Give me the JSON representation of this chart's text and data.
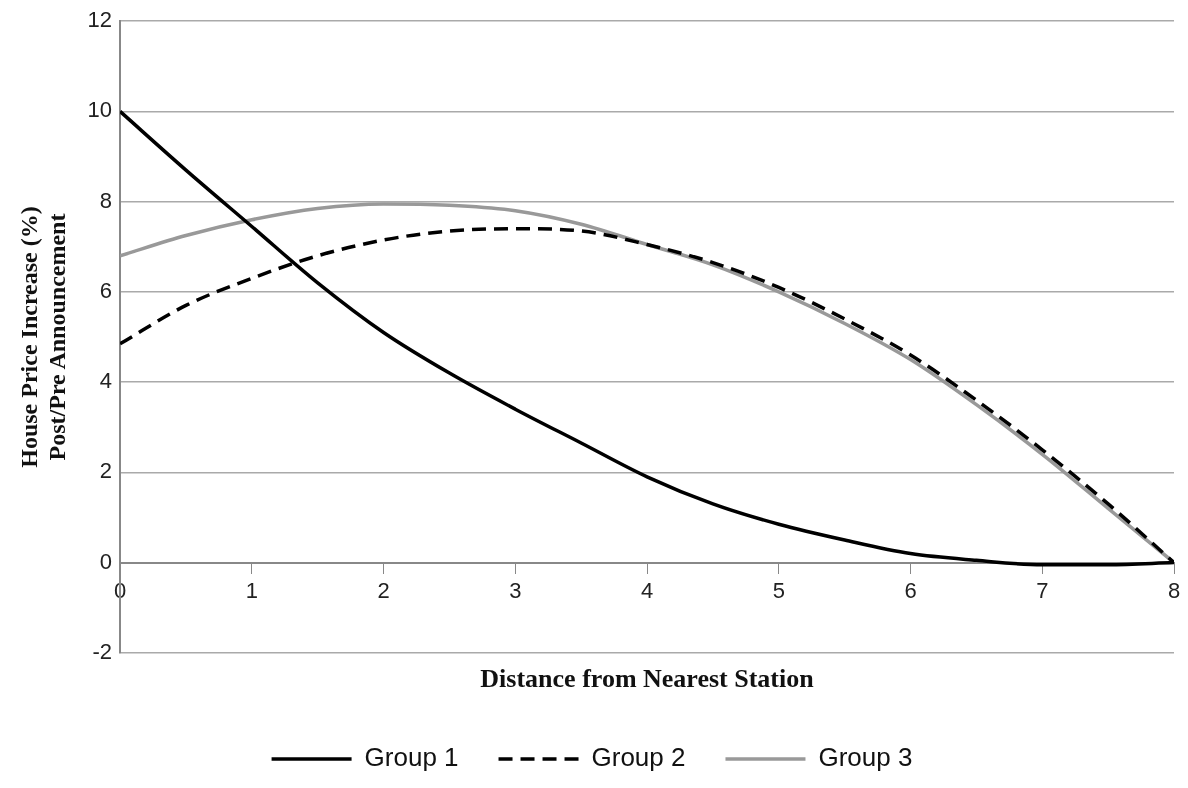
{
  "chart_data": {
    "type": "line",
    "xlabel": "Distance from Nearest Station",
    "ylabel": "House Price Increase (%)\nPost/Pre Announcement",
    "x": [
      0,
      0.5,
      1,
      1.5,
      2,
      2.5,
      3,
      3.5,
      4,
      4.5,
      5,
      5.5,
      6,
      6.5,
      7,
      7.5,
      8
    ],
    "series": [
      {
        "name": "Group 1",
        "color": "#000000",
        "line_style": "solid",
        "values": [
          10,
          8.7,
          7.45,
          6.2,
          5.1,
          4.2,
          3.4,
          2.65,
          1.9,
          1.3,
          0.85,
          0.5,
          0.2,
          0.05,
          -0.05,
          -0.05,
          0
        ]
      },
      {
        "name": "Group 2",
        "color": "#000000",
        "line_style": "dashed",
        "values": [
          4.85,
          5.7,
          6.3,
          6.8,
          7.15,
          7.35,
          7.4,
          7.35,
          7.05,
          6.65,
          6.1,
          5.4,
          4.6,
          3.6,
          2.5,
          1.3,
          0
        ]
      },
      {
        "name": "Group 3",
        "color": "#999999",
        "line_style": "solid",
        "values": [
          6.8,
          7.25,
          7.6,
          7.85,
          7.95,
          7.92,
          7.8,
          7.5,
          7.05,
          6.6,
          6.0,
          5.3,
          4.5,
          3.5,
          2.4,
          1.2,
          0
        ]
      }
    ],
    "xlim": [
      0,
      8
    ],
    "xticks": [
      0,
      1,
      2,
      3,
      4,
      5,
      6,
      7,
      8
    ],
    "ylim": [
      -2,
      12
    ],
    "yticks": [
      -2,
      0,
      2,
      4,
      6,
      8,
      10,
      12
    ],
    "grid": "y",
    "legend": "bottom",
    "marker": "none"
  }
}
